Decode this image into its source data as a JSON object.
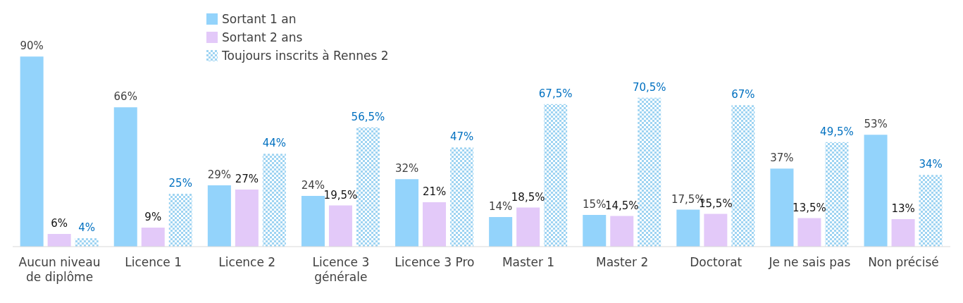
{
  "chart_data": {
    "type": "bar",
    "categories": [
      "Aucun niveau de diplôme",
      "Licence 1",
      "Licence 2",
      "Licence 3 générale",
      "Licence 3 Pro",
      "Master 1",
      "Master 2",
      "Doctorat",
      "Je ne sais pas",
      "Non précisé"
    ],
    "series": [
      {
        "name": "Sortant 1 an",
        "color": "#93d3fb",
        "values": [
          90,
          66,
          29,
          24,
          32,
          14,
          15,
          17.5,
          37,
          53
        ],
        "value_labels": [
          "90%",
          "66%",
          "29%",
          "24%",
          "32%",
          "14%",
          "15%",
          "17,5%",
          "37%",
          "53%"
        ]
      },
      {
        "name": "Sortant 2 ans",
        "color": "#e3c9f9",
        "values": [
          6,
          9,
          27,
          19.5,
          21,
          18.5,
          14.5,
          15.5,
          13.5,
          13
        ],
        "value_labels": [
          "6%",
          "9%",
          "27%",
          "19,5%",
          "21%",
          "18,5%",
          "14,5%",
          "15,5%",
          "13,5%",
          "13%"
        ]
      },
      {
        "name": "Toujours inscrits à Rennes 2",
        "color": "#9fd4f2",
        "values": [
          4,
          25,
          44,
          56.5,
          47,
          67.5,
          70.5,
          67,
          49.5,
          34
        ],
        "value_labels": [
          "4%",
          "25%",
          "44%",
          "56,5%",
          "47%",
          "67,5%",
          "70,5%",
          "67%",
          "49,5%",
          "34%"
        ]
      }
    ],
    "legend": "top"
  }
}
